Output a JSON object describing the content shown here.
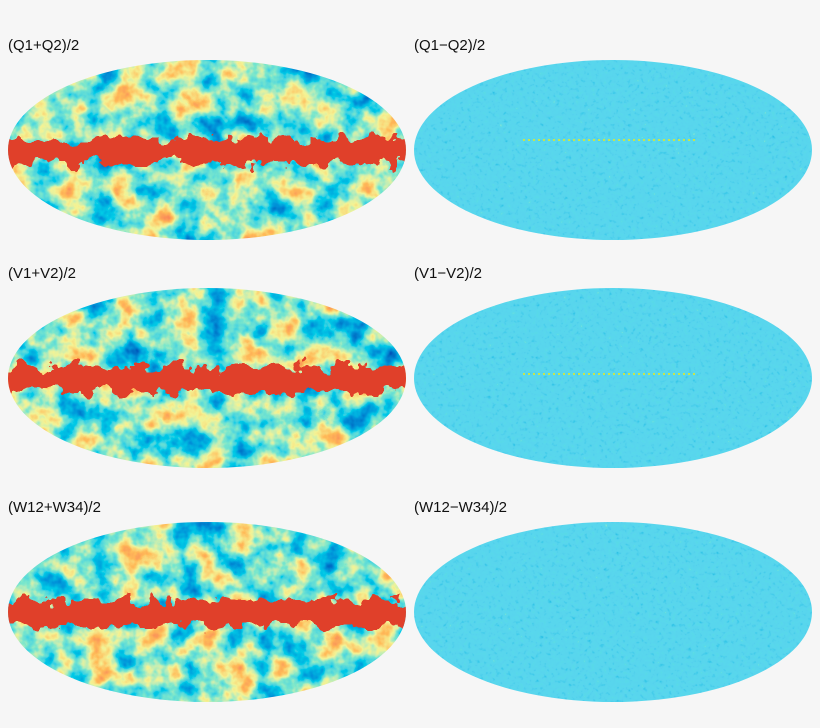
{
  "panels": [
    {
      "label": "(Q1+Q2)/2"
    },
    {
      "label": "(Q1−Q2)/2"
    },
    {
      "label": "(V1+V2)/2"
    },
    {
      "label": "(V1−V2)/2"
    },
    {
      "label": "(W12+W34)/2"
    },
    {
      "label": "(W12−W34)/2"
    }
  ]
}
